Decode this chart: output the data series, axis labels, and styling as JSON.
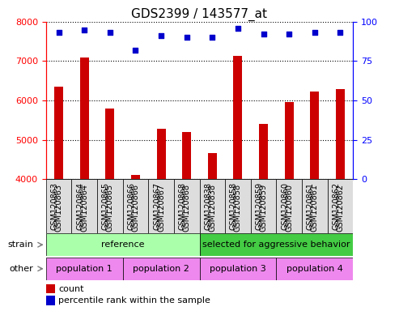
{
  "title": "GDS2399 / 143577_at",
  "samples": [
    "GSM120863",
    "GSM120864",
    "GSM120865",
    "GSM120866",
    "GSM120867",
    "GSM120868",
    "GSM120838",
    "GSM120858",
    "GSM120859",
    "GSM120860",
    "GSM120861",
    "GSM120862"
  ],
  "counts": [
    6350,
    7100,
    5800,
    4100,
    5270,
    5200,
    4670,
    7130,
    5400,
    5950,
    6230,
    6280
  ],
  "percentile_ranks": [
    93,
    95,
    93,
    82,
    91,
    90,
    90,
    96,
    92,
    92,
    93,
    93
  ],
  "ymin": 4000,
  "ymax": 8000,
  "y2min": 0,
  "y2max": 100,
  "yticks_left": [
    4000,
    5000,
    6000,
    7000,
    8000
  ],
  "yticks_right": [
    0,
    25,
    50,
    75,
    100
  ],
  "bar_color": "#cc0000",
  "dot_color": "#0000cc",
  "bar_width": 0.35,
  "strain_ref_color": "#aaffaa",
  "strain_sel_color": "#44cc44",
  "other_color": "#ee88ee",
  "tick_bg_color": "#dddddd",
  "strain_row_label": "strain",
  "other_row_label": "other",
  "strain_ref_text": "reference",
  "strain_sel_text": "selected for aggressive behavior",
  "pop_texts": [
    "population 1",
    "population 2",
    "population 3",
    "population 4"
  ],
  "legend_count_color": "#cc0000",
  "legend_dot_color": "#0000cc",
  "legend_count_text": "count",
  "legend_dot_text": "percentile rank within the sample"
}
